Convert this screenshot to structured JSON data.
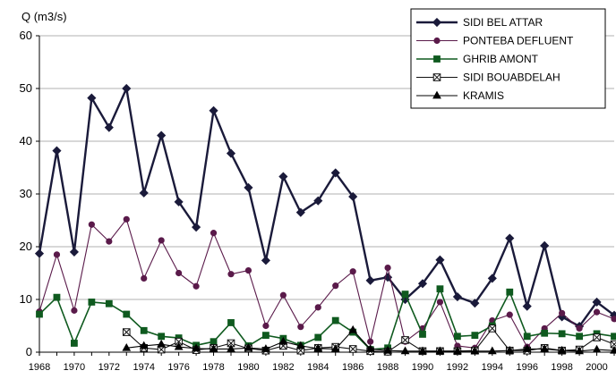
{
  "chart_data": {
    "type": "line",
    "ylabel": "Q (m3/s)",
    "xlabel": "",
    "ylim": [
      0,
      60
    ],
    "yticks": [
      0,
      10,
      20,
      30,
      40,
      50,
      60
    ],
    "xlim": [
      1968,
      2001
    ],
    "xticks": [
      1968,
      1970,
      1972,
      1974,
      1976,
      1978,
      1980,
      1982,
      1984,
      1986,
      1988,
      1990,
      1992,
      1994,
      1996,
      1998,
      2000
    ],
    "grid": "horizontal",
    "legend_position": "top-right",
    "series": [
      {
        "name": "SIDI BEL ATTAR",
        "color": "#1a1a3a",
        "marker": "diamond",
        "x": [
          1968,
          1969,
          1970,
          1971,
          1972,
          1973,
          1974,
          1975,
          1976,
          1977,
          1978,
          1979,
          1980,
          1981,
          1982,
          1983,
          1984,
          1985,
          1986,
          1987,
          1988,
          1989,
          1990,
          1991,
          1992,
          1993,
          1994,
          1995,
          1996,
          1997,
          1998,
          1999,
          2000,
          2001
        ],
        "values": [
          18.7,
          38.2,
          19.0,
          48.2,
          42.6,
          50.0,
          30.2,
          41.1,
          28.5,
          23.7,
          45.8,
          37.7,
          31.2,
          17.4,
          33.3,
          26.5,
          28.7,
          34.0,
          29.5,
          13.6,
          14.2,
          10.0,
          13.0,
          17.5,
          10.5,
          9.3,
          14.0,
          21.6,
          8.7,
          20.2,
          6.7,
          4.9,
          9.5,
          7.0
        ]
      },
      {
        "name": "PONTEBA DEFLUENT",
        "color": "#5a1a4a",
        "marker": "circle",
        "x": [
          1968,
          1969,
          1970,
          1971,
          1972,
          1973,
          1974,
          1975,
          1976,
          1977,
          1978,
          1979,
          1980,
          1981,
          1982,
          1983,
          1984,
          1985,
          1986,
          1987,
          1988,
          1989,
          1990,
          1991,
          1992,
          1993,
          1994,
          1995,
          1996,
          1997,
          1998,
          1999,
          2000,
          2001
        ],
        "values": [
          7.7,
          18.5,
          7.9,
          24.2,
          21.0,
          25.2,
          14.0,
          21.2,
          15.0,
          12.5,
          22.6,
          14.8,
          15.5,
          5.0,
          10.8,
          4.8,
          8.5,
          12.6,
          15.3,
          2.0,
          16.0,
          2.0,
          4.5,
          9.5,
          1.2,
          0.8,
          6.0,
          7.1,
          1.0,
          4.5,
          7.4,
          4.5,
          7.6,
          6.3
        ]
      },
      {
        "name": "GHRIB AMONT",
        "color": "#0f5a1f",
        "marker": "square",
        "x": [
          1968,
          1969,
          1970,
          1971,
          1972,
          1973,
          1974,
          1975,
          1976,
          1977,
          1978,
          1979,
          1980,
          1981,
          1982,
          1983,
          1984,
          1985,
          1986,
          1987,
          1988,
          1989,
          1990,
          1991,
          1992,
          1993,
          1994,
          1995,
          1996,
          1997,
          1998,
          1999,
          2000,
          2001
        ],
        "values": [
          7.2,
          10.4,
          1.7,
          9.5,
          9.2,
          7.2,
          4.1,
          3.0,
          2.7,
          1.3,
          2.0,
          5.6,
          1.2,
          3.2,
          2.6,
          1.3,
          2.8,
          6.0,
          3.8,
          0.5,
          0.8,
          11.0,
          3.4,
          12.0,
          3.0,
          3.2,
          5.0,
          11.4,
          3.0,
          3.6,
          3.5,
          3.0,
          3.5,
          3.0
        ]
      },
      {
        "name": "SIDI BOUABDELAH",
        "color": "#111111",
        "marker": "square-x",
        "x": [
          1973,
          1974,
          1975,
          1976,
          1977,
          1978,
          1979,
          1980,
          1981,
          1982,
          1983,
          1984,
          1985,
          1986,
          1987,
          1988,
          1989,
          1990,
          1991,
          1992,
          1993,
          1994,
          1995,
          1996,
          1997,
          1998,
          1999,
          2000,
          2001
        ],
        "values": [
          3.8,
          0.8,
          0.5,
          2.0,
          0.4,
          0.8,
          1.7,
          0.7,
          0.3,
          1.2,
          0.3,
          0.8,
          1.0,
          0.6,
          0.2,
          0.1,
          2.3,
          0.2,
          0.2,
          0.2,
          0.3,
          4.5,
          0.3,
          0.3,
          0.8,
          0.3,
          0.5,
          2.8,
          1.5
        ]
      },
      {
        "name": "KRAMIS",
        "color": "#000000",
        "marker": "triangle",
        "x": [
          1973,
          1974,
          1975,
          1976,
          1977,
          1978,
          1979,
          1980,
          1981,
          1982,
          1983,
          1984,
          1985,
          1986,
          1987,
          1988,
          1989,
          1990,
          1991,
          1992,
          1993,
          1994,
          1995,
          1996,
          1997,
          1998,
          1999,
          2000,
          2001
        ],
        "values": [
          0.8,
          1.2,
          1.5,
          1.0,
          0.7,
          0.6,
          0.6,
          0.8,
          0.6,
          2.0,
          1.2,
          0.7,
          0.6,
          4.2,
          0.6,
          0.3,
          0.2,
          0.2,
          0.2,
          0.2,
          0.2,
          0.2,
          0.3,
          0.6,
          0.6,
          0.3,
          0.2,
          0.5,
          0.3
        ]
      }
    ]
  }
}
